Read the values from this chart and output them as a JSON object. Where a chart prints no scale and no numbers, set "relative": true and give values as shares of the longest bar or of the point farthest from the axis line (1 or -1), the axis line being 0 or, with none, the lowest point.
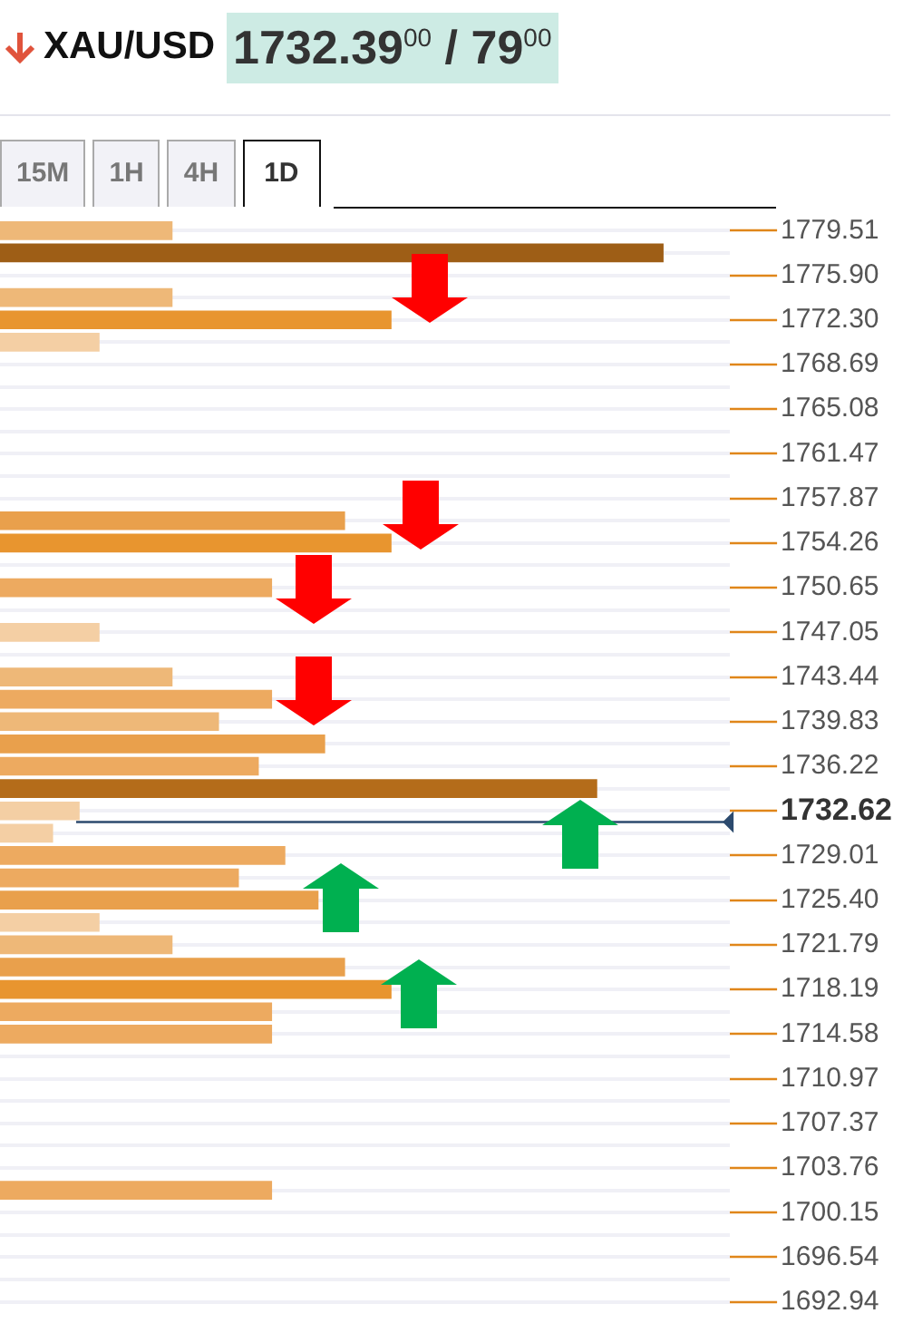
{
  "chart_data": {
    "type": "bar",
    "orientation": "horizontal",
    "relative": true,
    "title": "XAU/USD",
    "subtitle": "1732.39$^{00}$ / 79$^{00}$",
    "annotations": [
      "15M",
      "1H",
      "4H",
      "1D"
    ],
    "grid": "y",
    "categories": [
      "1779.51",
      null,
      "1775.90",
      null,
      "1772.30",
      null,
      "1768.69",
      null,
      "1765.08",
      null,
      "1761.47",
      null,
      "1757.87",
      null,
      "1754.26",
      null,
      "1750.65",
      null,
      "1747.05",
      null,
      "1743.44",
      null,
      "1739.83",
      null,
      "1736.22",
      null,
      "1732.62",
      null,
      "1729.01",
      null,
      "1725.40",
      null,
      "1721.79",
      null,
      "1718.19",
      null,
      "1714.58",
      null,
      "1710.97",
      null,
      "1707.37",
      null,
      "1703.76",
      null,
      "1700.15",
      null,
      "1696.54",
      null,
      "1692.94"
    ],
    "values": [
      0.26,
      1,
      null,
      0.26,
      0.59,
      0.15,
      null,
      null,
      null,
      null,
      null,
      null,
      null,
      0.52,
      0.59,
      null,
      0.41,
      null,
      0.15,
      null,
      0.26,
      0.41,
      0.33,
      0.49,
      0.39,
      0.9,
      0.12,
      0.08,
      0.43,
      0.36,
      0.48,
      0.15,
      0.26,
      0.52,
      0.59,
      0.41,
      0.41,
      null,
      null,
      null,
      null,
      null,
      null,
      0.41,
      null,
      null,
      null,
      null,
      null
    ],
    "colors": [
      "#eeb878",
      "#9e5e16",
      null,
      "#eeb878",
      "#e8952f",
      "#f4cfa4",
      null,
      null,
      null,
      null,
      null,
      null,
      null,
      "#e9a04c",
      "#e8952f",
      null,
      "#edaa60",
      null,
      "#f4cfa4",
      null,
      "#eeb878",
      "#edaa60",
      "#eeb878",
      "#e9a04c",
      "#edaa60",
      "#b46c1a",
      "#f4cfa4",
      "#f4cfa4",
      "#edaa60",
      "#edaa60",
      "#e9a04c",
      "#f4cfa4",
      "#eeb878",
      "#e9a04c",
      "#e8952f",
      "#edaa60",
      "#edaa60",
      null,
      null,
      null,
      null,
      null,
      null,
      "#edaa60",
      null,
      null,
      null,
      null,
      null
    ],
    "ref_lines": [
      {
        "axis": "y",
        "value": "1732.62",
        "color": "#2c4a6e"
      }
    ]
  }
}
